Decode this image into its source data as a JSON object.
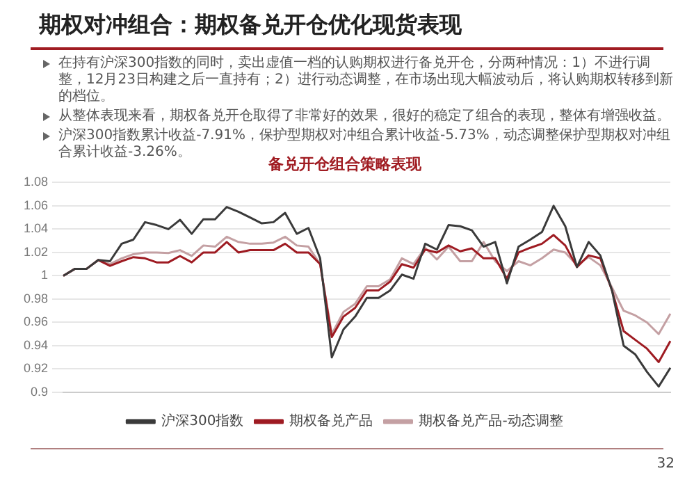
{
  "chart_data": {
    "type": "line",
    "title": "期权对冲组合：期权备兑开仓优化现货表现",
    "subtitle": "备兑开仓组合策略表现",
    "annotations": [
      "在持有沪深300指数的同时，卖出虚值一档的认购期权进行备兑开仓，分两种情况：1）不进行调整，12月23日构建之后一直持有；2）进行动态调整，在市场出现大幅波动后，将认购期权转移到新的档位。",
      "从整体表现来看，期权备兑开仓取得了非常好的效果，很好的稳定了组合的表现，整体有增强收益。",
      "沪深300指数累计收益-7.91%，保护型期权对冲组合累计收益-5.73%，动态调整保护型期权对冲组合累计收益-3.26%。",
      "32"
    ],
    "categories": [
      null,
      null,
      null,
      null,
      null,
      null,
      null,
      null,
      null,
      null,
      null,
      null,
      null,
      null,
      null,
      null,
      null,
      null,
      null,
      null,
      null,
      null,
      null,
      null,
      null,
      null,
      null,
      null,
      null,
      null,
      null,
      null,
      null,
      null,
      null,
      null,
      null,
      null,
      null,
      null,
      null,
      null,
      null,
      null,
      null,
      null,
      null,
      null,
      null,
      null,
      null,
      null,
      null
    ],
    "series": [
      {
        "name": "沪深300指数",
        "color": "#3a3a3a",
        "values": [
          1.0,
          1.006,
          1.006,
          1.0135,
          1.0125,
          1.0275,
          1.031,
          1.046,
          1.0435,
          1.04,
          1.048,
          1.036,
          1.0485,
          1.0485,
          1.059,
          1.055,
          1.05,
          1.045,
          1.046,
          1.054,
          1.036,
          1.041,
          1.015,
          0.93,
          0.954,
          0.965,
          0.981,
          0.981,
          0.9875,
          1.001,
          0.9975,
          1.0275,
          1.0225,
          1.0435,
          1.0425,
          1.039,
          1.025,
          1.029,
          0.9935,
          1.025,
          1.031,
          1.0375,
          1.06,
          1.0425,
          1.0075,
          1.029,
          1.0175,
          0.9875,
          0.94,
          0.9325,
          0.9175,
          0.905,
          0.921
        ]
      },
      {
        "name": "期权备兑产品",
        "color": "#9e1b22",
        "values": [
          1.0,
          1.006,
          1.006,
          1.0135,
          1.0085,
          1.0125,
          1.016,
          1.015,
          1.0115,
          1.0115,
          1.017,
          1.0115,
          1.02,
          1.02,
          1.029,
          1.02,
          1.022,
          1.022,
          1.022,
          1.0275,
          1.02,
          1.02,
          1.01,
          0.9475,
          0.965,
          0.9725,
          0.9875,
          0.9875,
          0.995,
          1.01,
          1.007,
          1.0225,
          1.02,
          1.026,
          1.021,
          1.0235,
          1.015,
          1.015,
          0.9975,
          1.02,
          1.024,
          1.0275,
          1.035,
          1.026,
          1.0075,
          1.0175,
          1.015,
          0.9875,
          0.9525,
          0.945,
          0.9375,
          0.926,
          0.944
        ]
      },
      {
        "name": "期权备兑产品-动态调整",
        "color": "#c4a0a3",
        "values": [
          1.0,
          1.006,
          1.006,
          1.0135,
          1.01,
          1.015,
          1.0185,
          1.02,
          1.02,
          1.0195,
          1.022,
          1.017,
          1.026,
          1.025,
          1.0335,
          1.029,
          1.0275,
          1.0275,
          1.0285,
          1.0335,
          1.026,
          1.025,
          1.01,
          0.95,
          0.969,
          0.976,
          0.991,
          0.991,
          0.997,
          1.015,
          1.01,
          1.024,
          1.014,
          1.025,
          1.0125,
          1.0125,
          1.029,
          1.0125,
          1.004,
          1.0125,
          1.009,
          1.015,
          1.0225,
          1.02,
          1.009,
          1.016,
          1.009,
          0.99,
          0.97,
          0.966,
          0.96,
          0.95,
          0.9675
        ]
      }
    ],
    "ylim": [
      0.9,
      1.08
    ],
    "yticks": [
      0.9,
      0.92,
      0.94,
      0.96,
      0.98,
      1,
      1.02,
      1.04,
      1.06,
      1.08
    ],
    "grid": "y",
    "legend": "bottom",
    "marker": "none",
    "line_style": "solid",
    "tick_labels": "y"
  }
}
